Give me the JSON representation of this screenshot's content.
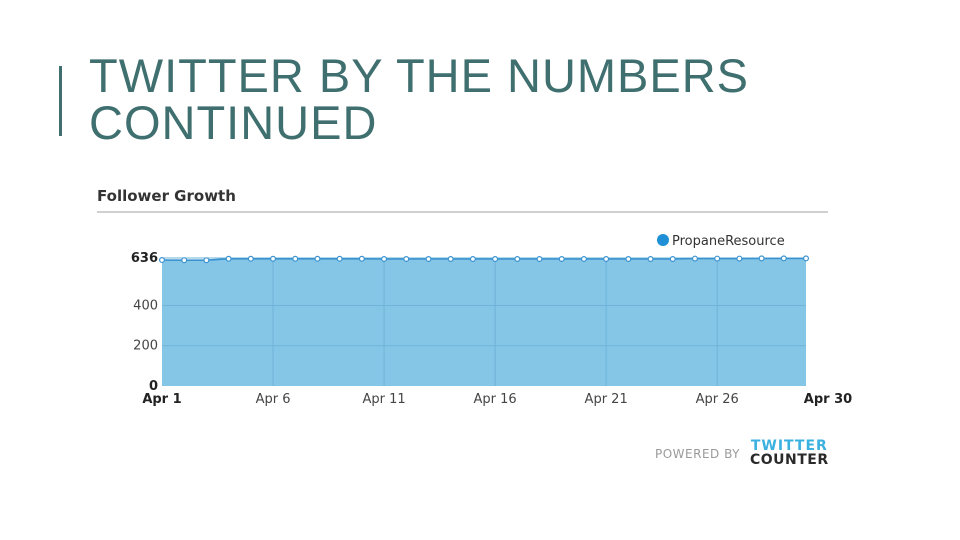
{
  "slide": {
    "title_line1": "TWITTER BY THE NUMBERS",
    "title_line2": "CONTINUED"
  },
  "widget": {
    "title": "Follower Growth"
  },
  "footer": {
    "powered_by": "POWERED BY",
    "brand_line1": "TWITTER",
    "brand_line2": "COUNTER"
  },
  "colors": {
    "title": "#3f6f6f",
    "area_fill": "#85c6e7",
    "series_line": "#3a93d0",
    "legend_dot": "#1f8fd6"
  },
  "chart_data": {
    "type": "area",
    "title": "Follower Growth",
    "x": [
      1,
      2,
      3,
      4,
      5,
      6,
      7,
      8,
      9,
      10,
      11,
      12,
      13,
      14,
      15,
      16,
      17,
      18,
      19,
      20,
      21,
      22,
      23,
      24,
      25,
      26,
      27,
      28,
      29,
      30
    ],
    "x_tick_values": [
      1,
      6,
      11,
      16,
      21,
      26,
      30
    ],
    "x_tick_labels": [
      "Apr 1",
      "Apr 6",
      "Apr 11",
      "Apr 16",
      "Apr 21",
      "Apr 26",
      "Apr 30"
    ],
    "y_ticks": [
      0,
      200,
      400,
      636
    ],
    "ylim": [
      0,
      636
    ],
    "grid": true,
    "legend": "top-right",
    "series": [
      {
        "name": "PropaneResource",
        "values": [
          626,
          625,
          625,
          632,
          632,
          632,
          632,
          632,
          632,
          632,
          631,
          631,
          631,
          631,
          631,
          631,
          631,
          631,
          631,
          631,
          631,
          631,
          631,
          631,
          633,
          633,
          633,
          634,
          634,
          634
        ]
      }
    ]
  }
}
